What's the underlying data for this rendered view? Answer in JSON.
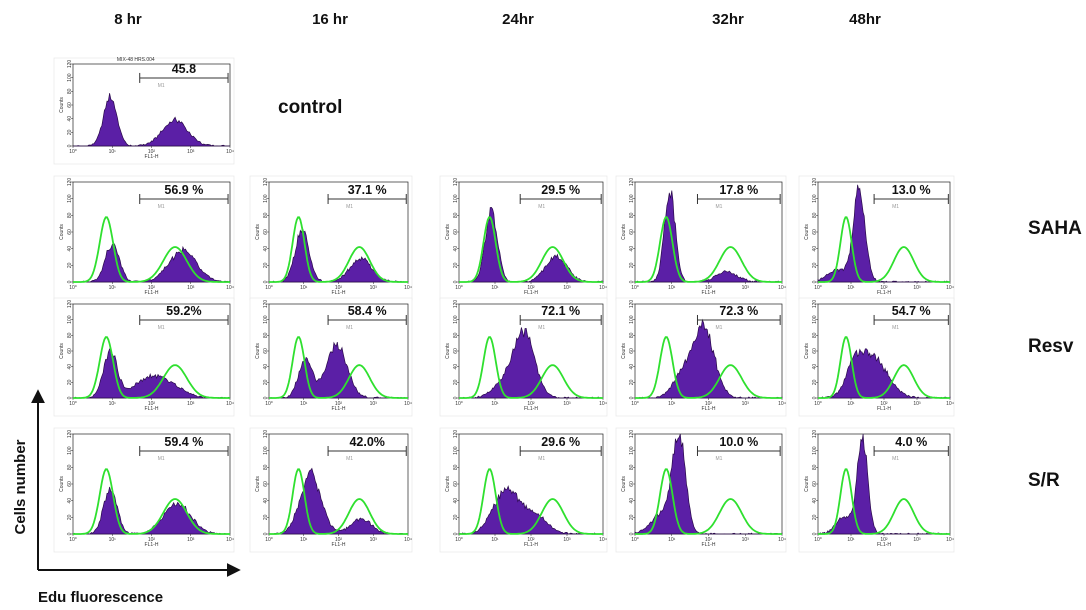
{
  "chart_data": {
    "type": "histogram-grid",
    "time_points": [
      "8 hr",
      "16 hr",
      "24hr",
      "32hr",
      "48hr"
    ],
    "control_label": "control",
    "control_title": "MIX-48 HRS.004",
    "axis_x_label": "Edu fluorescence",
    "axis_y_label": "Cells number",
    "panel_xlabel": "FL1-H",
    "panel_ylabel": "Counts",
    "panel_xticks": [
      "10⁰",
      "10¹",
      "10²",
      "10³",
      "10⁴"
    ],
    "panel_yticks": [
      "0",
      "20",
      "40",
      "60",
      "80",
      "100",
      "120"
    ],
    "panel_ylim": [
      0,
      120
    ],
    "gate_name": "M1",
    "colors": {
      "fill": "#5b1fa6",
      "outline": "#2a0a4a",
      "overlay": "#2fe02f"
    },
    "control": {
      "percent": "45.8",
      "peaks": [
        [
          0.95,
          72,
          0.17
        ],
        [
          2.6,
          38,
          0.32
        ]
      ]
    },
    "overlay_peaks": [
      [
        0.85,
        78,
        0.17
      ],
      [
        2.6,
        42,
        0.3
      ]
    ],
    "rows": [
      {
        "label": "SAHA",
        "panels": [
          {
            "percent": "56.9 %",
            "peaks": [
              [
                1.0,
                45,
                0.18
              ],
              [
                2.8,
                38,
                0.35
              ]
            ]
          },
          {
            "percent": "37.1 %",
            "peaks": [
              [
                0.95,
                62,
                0.2
              ],
              [
                2.65,
                28,
                0.32
              ]
            ]
          },
          {
            "percent": "29.5 %",
            "peaks": [
              [
                0.9,
                85,
                0.17
              ],
              [
                2.7,
                30,
                0.3
              ]
            ]
          },
          {
            "percent": "17.8 %",
            "peaks": [
              [
                0.95,
                110,
                0.15
              ],
              [
                2.5,
                12,
                0.3
              ]
            ]
          },
          {
            "percent": "13.0 %",
            "peaks": [
              [
                1.25,
                110,
                0.18
              ],
              [
                0.6,
                15,
                0.3
              ]
            ]
          }
        ]
      },
      {
        "label": "Resv",
        "panels": [
          {
            "percent": "59.2%",
            "peaks": [
              [
                0.95,
                60,
                0.17
              ],
              [
                2.1,
                28,
                0.5
              ]
            ]
          },
          {
            "percent": "58.4 %",
            "peaks": [
              [
                1.05,
                48,
                0.2
              ],
              [
                1.95,
                68,
                0.3
              ]
            ]
          },
          {
            "percent": "72.1 %",
            "peaks": [
              [
                1.8,
                83,
                0.3
              ],
              [
                1.2,
                15,
                0.3
              ]
            ]
          },
          {
            "percent": "72.3 %",
            "peaks": [
              [
                1.85,
                90,
                0.3
              ],
              [
                1.25,
                25,
                0.25
              ]
            ]
          },
          {
            "percent": "54.7 %",
            "peaks": [
              [
                1.65,
                52,
                0.45
              ],
              [
                1.1,
                30,
                0.25
              ]
            ]
          }
        ]
      },
      {
        "label": "S/R",
        "panels": [
          {
            "percent": "59.4 %",
            "peaks": [
              [
                0.95,
                55,
                0.17
              ],
              [
                2.65,
                36,
                0.35
              ]
            ]
          },
          {
            "percent": "42.0%",
            "peaks": [
              [
                1.2,
                72,
                0.3
              ],
              [
                2.65,
                18,
                0.3
              ]
            ]
          },
          {
            "percent": "29.6 %",
            "peaks": [
              [
                1.3,
                52,
                0.35
              ],
              [
                2.1,
                22,
                0.35
              ]
            ]
          },
          {
            "percent": "10.0 %",
            "peaks": [
              [
                1.2,
                112,
                0.18
              ],
              [
                0.75,
                25,
                0.3
              ]
            ]
          },
          {
            "percent": "4.0 %",
            "peaks": [
              [
                1.35,
                113,
                0.16
              ],
              [
                0.8,
                20,
                0.25
              ]
            ]
          }
        ]
      }
    ]
  }
}
